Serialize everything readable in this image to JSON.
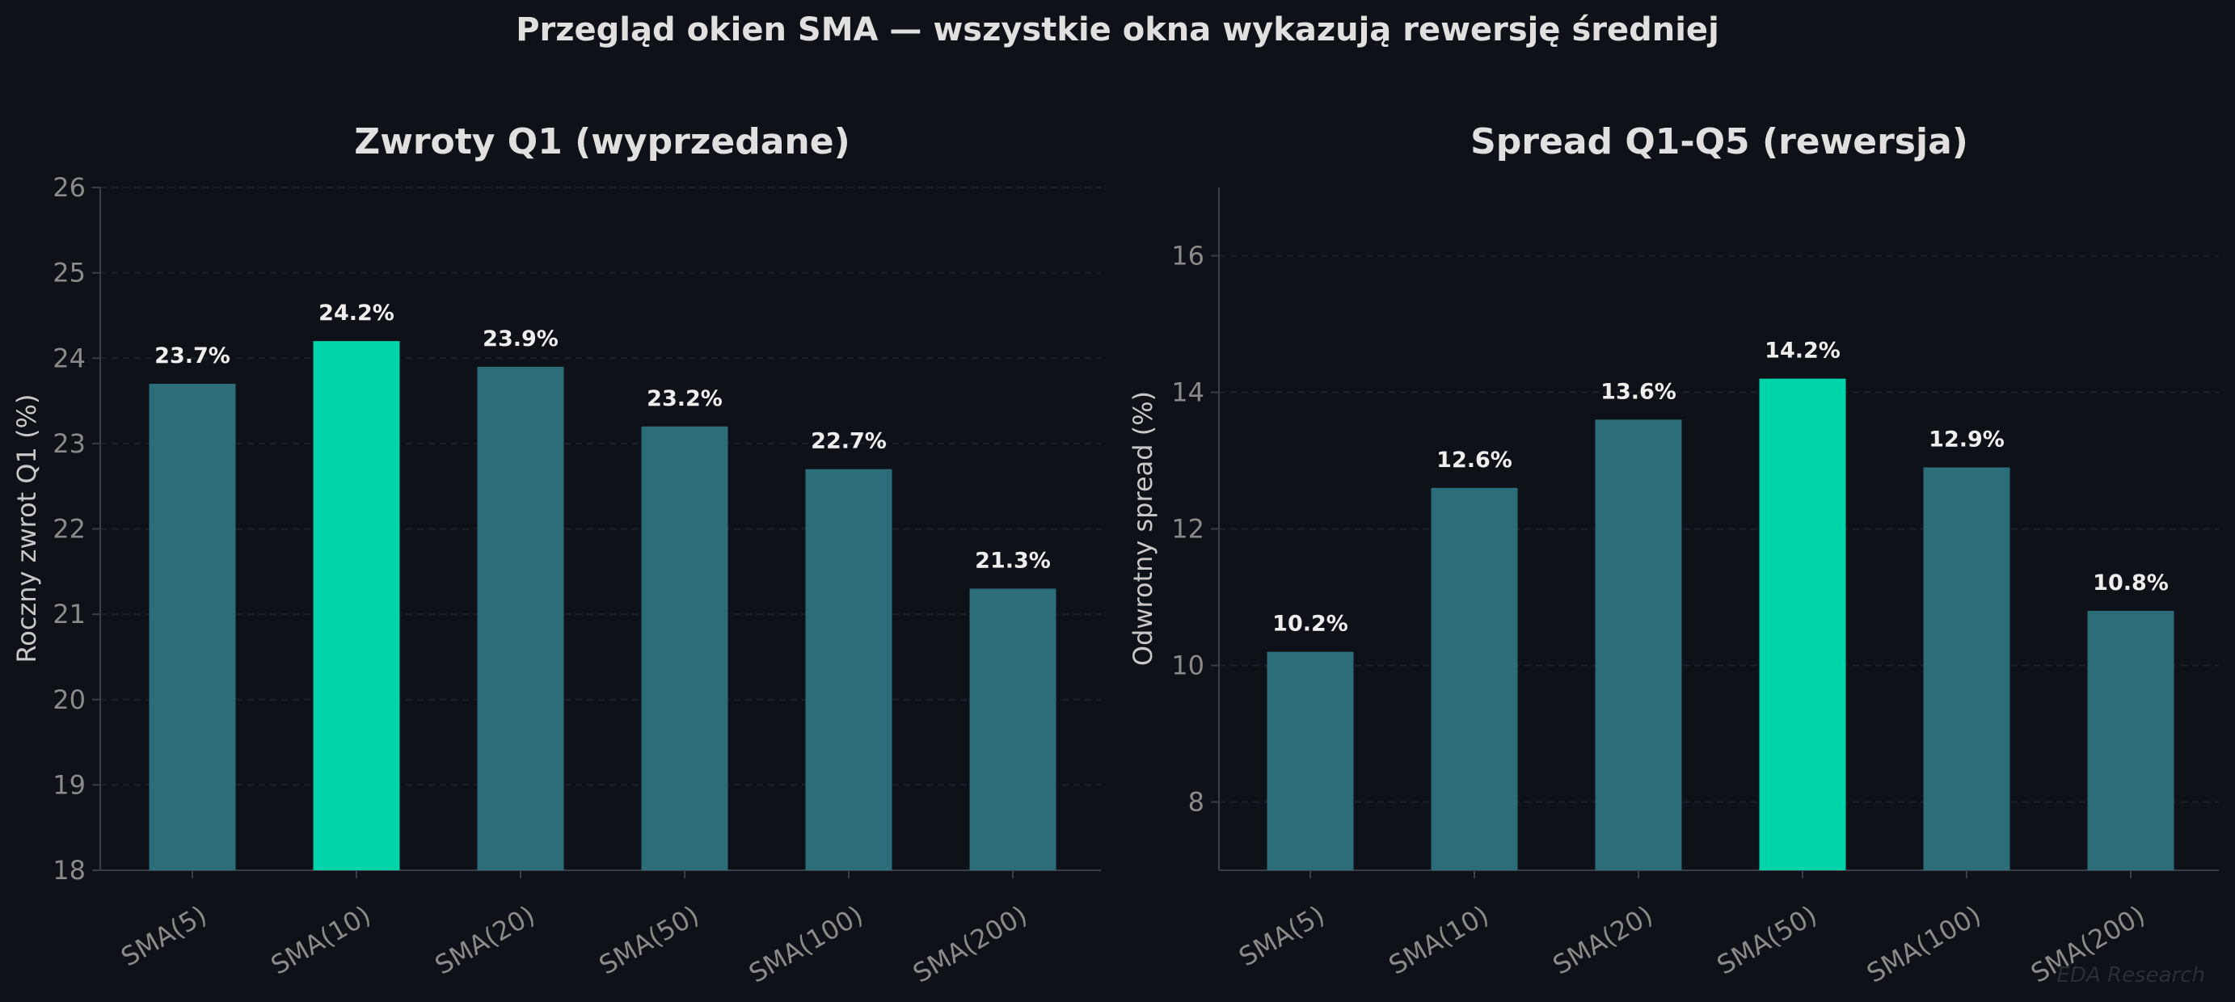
{
  "figure": {
    "suptitle": "Przegląd okien SMA — wszystkie okna wykazują rewersję średniej",
    "watermark": "EDA Research",
    "colors": {
      "background": "#0e1117",
      "bar": "#2b6d78",
      "highlight": "#00d4aa",
      "axis": "#3a3f47",
      "text": "#e0e0e0",
      "tick": "#8a8a8a"
    }
  },
  "chart_data": [
    {
      "type": "bar",
      "title": "Zwroty Q1 (wyprzedane)",
      "xlabel": "",
      "ylabel": "Roczny zwrot Q1 (%)",
      "categories": [
        "SMA(5)",
        "SMA(10)",
        "SMA(20)",
        "SMA(50)",
        "SMA(100)",
        "SMA(200)"
      ],
      "values": [
        23.7,
        24.2,
        23.9,
        23.2,
        22.7,
        21.3
      ],
      "labels": [
        "23.7%",
        "24.2%",
        "23.9%",
        "23.2%",
        "22.7%",
        "21.3%"
      ],
      "highlight_index": 1,
      "ylim": [
        18,
        26
      ],
      "yticks": [
        18,
        19,
        20,
        21,
        22,
        23,
        24,
        25,
        26
      ],
      "grid": true
    },
    {
      "type": "bar",
      "title": "Spread Q1-Q5 (rewersja)",
      "xlabel": "",
      "ylabel": "Odwrotny spread (%)",
      "categories": [
        "SMA(5)",
        "SMA(10)",
        "SMA(20)",
        "SMA(50)",
        "SMA(100)",
        "SMA(200)"
      ],
      "values": [
        10.2,
        12.6,
        13.6,
        14.2,
        12.9,
        10.8
      ],
      "labels": [
        "10.2%",
        "12.6%",
        "13.6%",
        "14.2%",
        "12.9%",
        "10.8%"
      ],
      "highlight_index": 3,
      "ylim": [
        7,
        17
      ],
      "yticks": [
        8,
        10,
        12,
        14,
        16
      ],
      "grid": true
    }
  ]
}
